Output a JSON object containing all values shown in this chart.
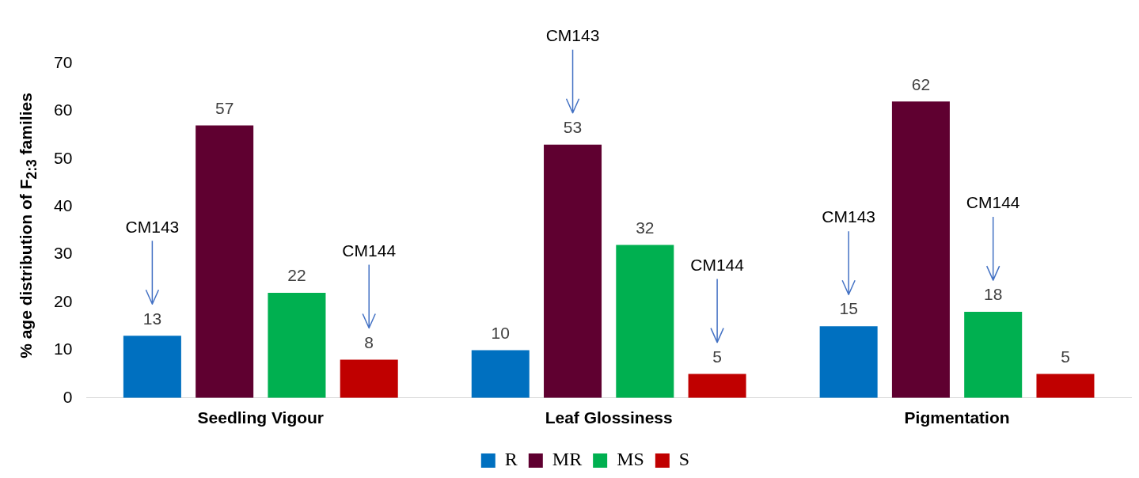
{
  "chart_data": {
    "type": "bar",
    "ylabel": "% age distribution of F$_{2:3}$ families",
    "categories": [
      "Seedling Vigour",
      "Leaf Glossiness",
      "Pigmentation"
    ],
    "series": [
      {
        "name": "R",
        "color": "#0070c0",
        "values": [
          13,
          10,
          15
        ]
      },
      {
        "name": "MR",
        "color": "#5f0030",
        "values": [
          57,
          53,
          62
        ]
      },
      {
        "name": "MS",
        "color": "#00b050",
        "values": [
          22,
          32,
          18
        ]
      },
      {
        "name": "S",
        "color": "#c00000",
        "values": [
          8,
          5,
          5
        ]
      }
    ],
    "ylim": [
      0,
      70
    ],
    "yticks": [
      0,
      10,
      20,
      30,
      40,
      50,
      60,
      70
    ],
    "grid": false,
    "legend": "bottom",
    "data_labels": true,
    "annotations": [
      "CM143",
      "CM144",
      "CM143",
      "CM144",
      "CM143",
      "CM144"
    ]
  }
}
